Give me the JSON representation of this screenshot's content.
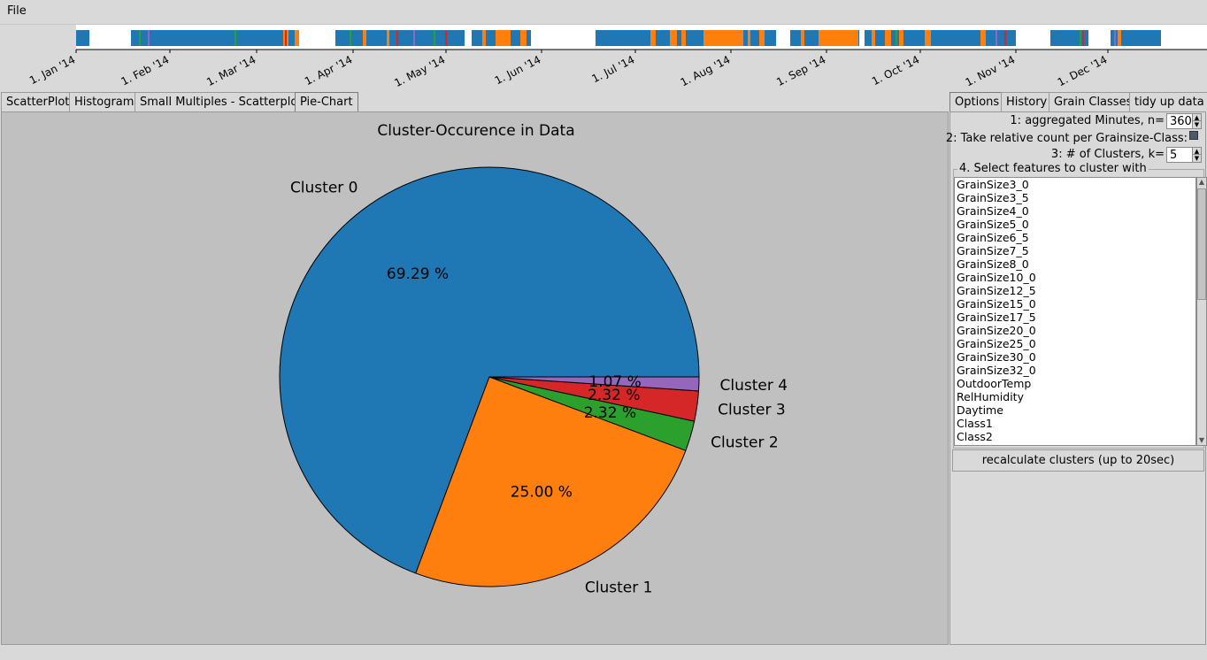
{
  "menubar": {
    "file_label": "File"
  },
  "timeline": {
    "months": [
      "1. Jan '14",
      "1. Feb '14",
      "1. Mar '14",
      "1. Apr '14",
      "1. May '14",
      "1. Jun '14",
      "1. Jul '14",
      "1. Aug '14",
      "1. Sep '14",
      "1. Oct '14",
      "1. Nov '14",
      "1. Dec '14"
    ],
    "colors": {
      "blue": "#1f77b4",
      "orange": "#ff7f0e",
      "green": "#2ca02c",
      "red": "#d62728",
      "purple": "#9467bd"
    }
  },
  "left_tabs": [
    {
      "label": "ScatterPlot"
    },
    {
      "label": "Histogram"
    },
    {
      "label": "Small Multiples - Scatterplot"
    },
    {
      "label": "Pie-Chart"
    }
  ],
  "right_tabs": [
    {
      "label": "Options"
    },
    {
      "label": "History"
    },
    {
      "label": "Grain Classes"
    },
    {
      "label": "tidy up data"
    }
  ],
  "options": {
    "minutes_label": "1: aggregated Minutes, n=",
    "minutes_value": "360",
    "relative_label": "2: Take relative count per Grainsize-Class:",
    "clusters_label": "3: # of Clusters, k=",
    "clusters_value": "5",
    "features_title": "4. Select features to cluster with",
    "features": [
      "GrainSize3_0",
      "GrainSize3_5",
      "GrainSize4_0",
      "GrainSize5_0",
      "GrainSize6_5",
      "GrainSize7_5",
      "GrainSize8_0",
      "GrainSize10_0",
      "GrainSize12_5",
      "GrainSize15_0",
      "GrainSize17_5",
      "GrainSize20_0",
      "GrainSize25_0",
      "GrainSize30_0",
      "GrainSize32_0",
      "OutdoorTemp",
      "RelHumidity",
      "Daytime",
      "Class1",
      "Class2"
    ],
    "recalc_label": "recalculate clusters (up to 20sec)"
  },
  "chart_data": {
    "type": "pie",
    "title": "Cluster-Occurence in Data",
    "slices": [
      {
        "label": "Cluster 0",
        "value": 69.29,
        "pct_label": "69.29 %",
        "color": "#1f77b4"
      },
      {
        "label": "Cluster 1",
        "value": 25.0,
        "pct_label": "25.00 %",
        "color": "#ff7f0e"
      },
      {
        "label": "Cluster 2",
        "value": 2.32,
        "pct_label": "2.32 %",
        "color": "#2ca02c"
      },
      {
        "label": "Cluster 3",
        "value": 2.32,
        "pct_label": "2.32 %",
        "color": "#d62728"
      },
      {
        "label": "Cluster 4",
        "value": 1.07,
        "pct_label": "1.07 %",
        "color": "#9467bd"
      }
    ]
  }
}
